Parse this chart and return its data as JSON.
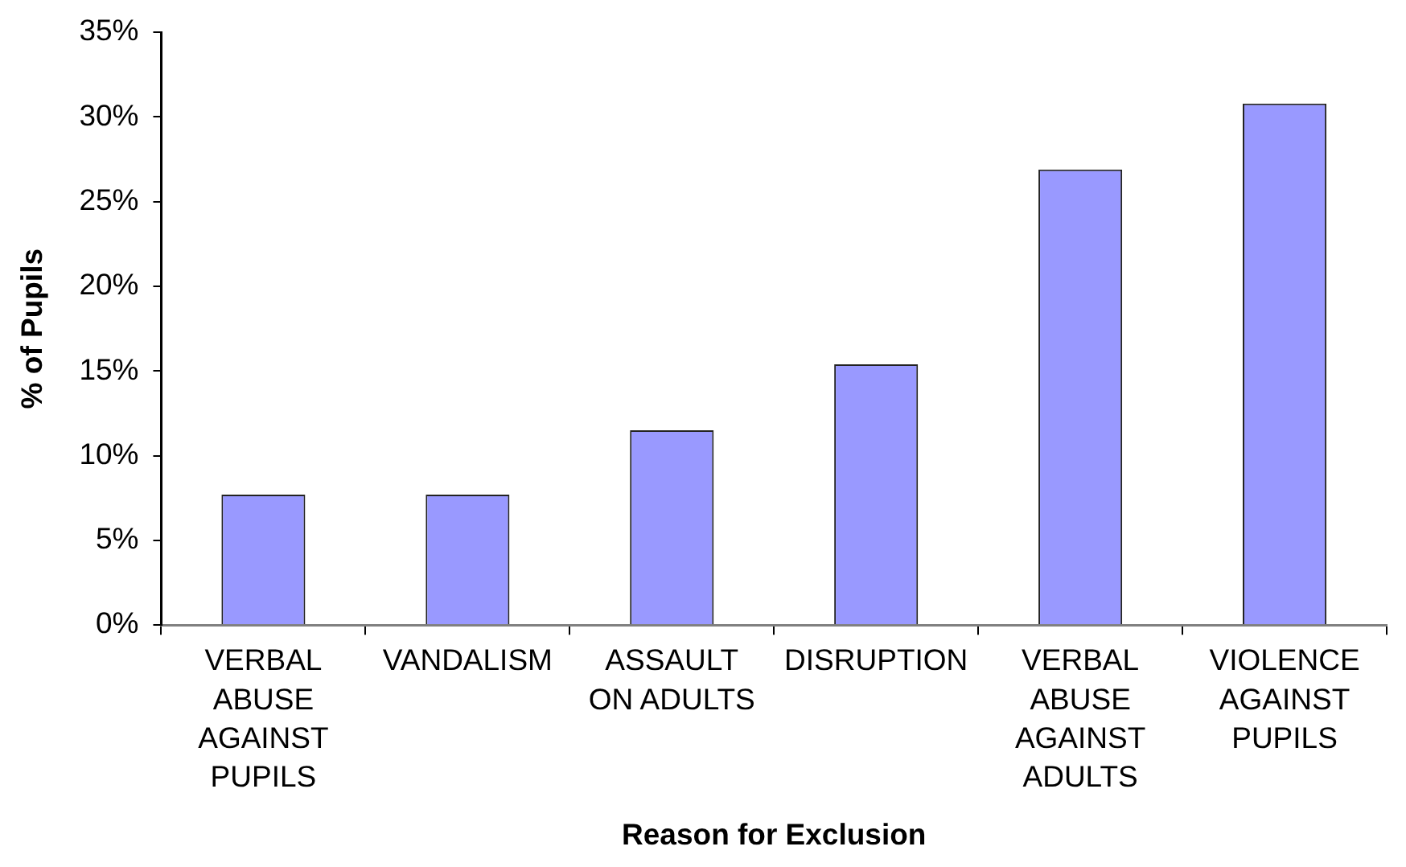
{
  "chart_data": {
    "type": "bar",
    "xlabel": "Reason for Exclusion",
    "ylabel": "% of Pupils",
    "categories": [
      "VERBAL ABUSE AGAINST PUPILS",
      "VANDALISM",
      "ASSAULT ON ADULTS",
      "DISRUPTION",
      "VERBAL ABUSE AGAINST ADULTS",
      "VIOLENCE AGAINST PUPILS"
    ],
    "values": [
      7.7,
      7.7,
      11.5,
      15.4,
      26.9,
      30.8
    ],
    "color": "#9999ff",
    "ylim": [
      0,
      35
    ],
    "yticks": [
      {
        "value": 0,
        "label": "0%"
      },
      {
        "value": 5,
        "label": "5%"
      },
      {
        "value": 10,
        "label": "10%"
      },
      {
        "value": 15,
        "label": "15%"
      },
      {
        "value": 20,
        "label": "20%"
      },
      {
        "value": 25,
        "label": "25%"
      },
      {
        "value": 30,
        "label": "30%"
      },
      {
        "value": 35,
        "label": "35%"
      }
    ],
    "grid": false,
    "legend": false
  }
}
